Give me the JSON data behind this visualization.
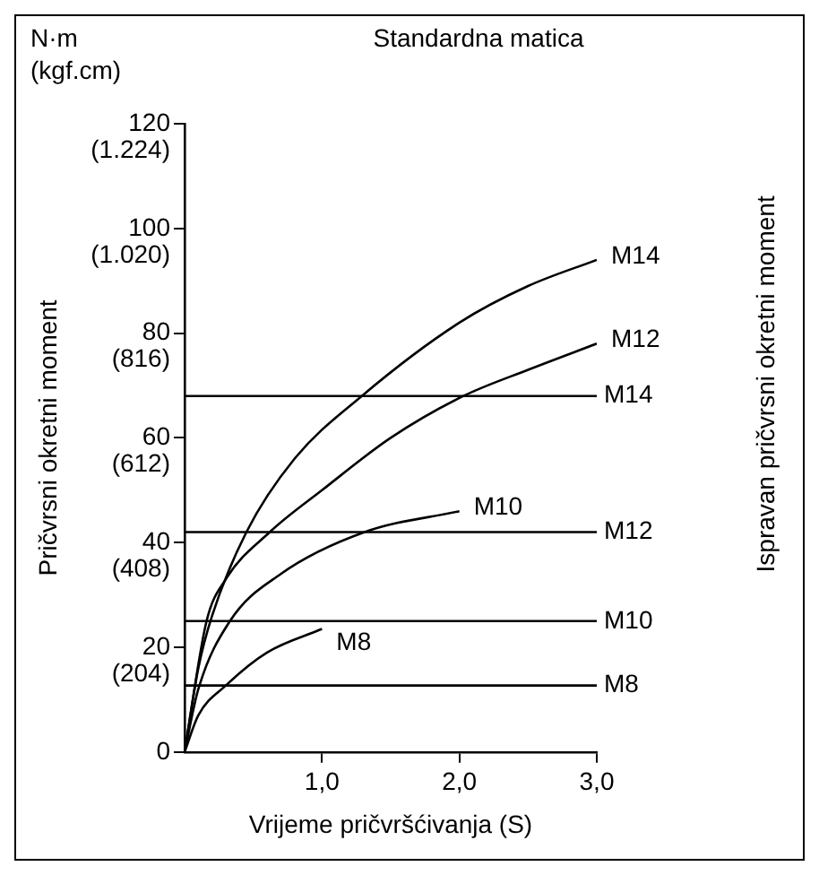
{
  "chart_data": {
    "type": "line",
    "title": "Standardna matica",
    "xlabel": "Vrijeme pričvršćivanja (S)",
    "y2label": "Pričvrsni okretni moment",
    "annotations": [
      "N·m",
      "(kgf.cm)",
      "Ispravan pričvrsni okretni moment"
    ],
    "xlim": [
      0,
      3
    ],
    "xticks": [
      {
        "value": 1,
        "label": "1,0"
      },
      {
        "value": 2,
        "label": "2,0"
      },
      {
        "value": 3,
        "label": "3,0"
      }
    ],
    "ylim": [
      0,
      120
    ],
    "yticks": [
      0,
      20,
      40,
      60,
      80,
      100,
      120
    ],
    "y2lim": [
      0,
      1224
    ],
    "y2ticks": [
      {
        "value": 204,
        "label": "(204)"
      },
      {
        "value": 408,
        "label": "(408)"
      },
      {
        "value": 612,
        "label": "(612)"
      },
      {
        "value": 816,
        "label": "(816)"
      },
      {
        "value": 1020,
        "label": "(1.020)"
      },
      {
        "value": 1224,
        "label": "(1.224)"
      }
    ],
    "grid": false,
    "legend": false,
    "marker": "none",
    "line_style": "solid",
    "series": [
      {
        "name": "M14",
        "color": "#000000",
        "x": [
          0,
          0.1,
          0.2,
          0.45,
          0.8,
          1.29,
          2,
          2.5,
          3
        ],
        "values": [
          0,
          16,
          26,
          42,
          56,
          68,
          82,
          89,
          94
        ]
      },
      {
        "name": "M12",
        "color": "#000000",
        "x": [
          0,
          0.16,
          0.3,
          0.62,
          1,
          1.5,
          2.03,
          2.5,
          3
        ],
        "values": [
          0,
          25,
          33,
          42,
          50,
          60,
          68,
          73,
          78
        ]
      },
      {
        "name": "M10",
        "color": "#000000",
        "x": [
          0,
          0.1,
          0.33,
          0.7,
          1.31,
          2
        ],
        "values": [
          0,
          12,
          25,
          34,
          42,
          46
        ]
      },
      {
        "name": "M8",
        "color": "#000000",
        "x": [
          0,
          0.1,
          0.3,
          0.6,
          1
        ],
        "values": [
          0,
          7,
          12.7,
          19,
          23.5
        ]
      }
    ],
    "ref_lines": [
      {
        "axis": "y",
        "value": 68,
        "label": "M14",
        "color": "#000000"
      },
      {
        "axis": "y",
        "value": 42,
        "label": "M12",
        "color": "#000000"
      },
      {
        "axis": "y",
        "value": 25,
        "label": "M10",
        "color": "#000000"
      },
      {
        "axis": "y",
        "value": 12.7,
        "label": "M8",
        "color": "#000000"
      }
    ]
  }
}
